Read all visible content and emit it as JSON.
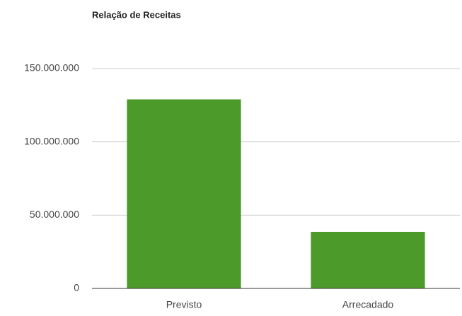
{
  "chart_data": {
    "type": "bar",
    "title": "Relação de Receitas",
    "categories": [
      "Previsto",
      "Arrecadado"
    ],
    "values": [
      129000000,
      38600000
    ],
    "color": "#4c9a2a",
    "ylim": [
      0,
      150000000
    ],
    "yticks": [
      0,
      {
        "value": 50000000,
        "label": "50.000.000"
      },
      {
        "value": 100000000,
        "label": "100.000.000"
      },
      {
        "value": 150000000,
        "label": "150.000.000"
      }
    ],
    "grid": true
  }
}
